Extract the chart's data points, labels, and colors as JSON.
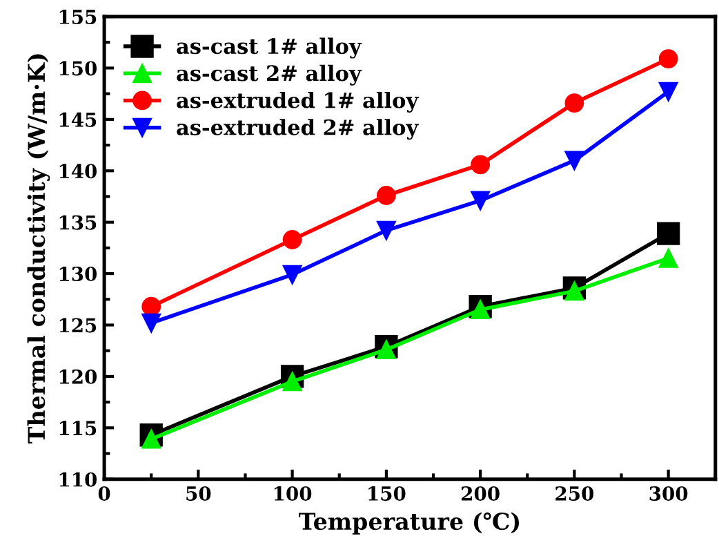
{
  "chart_data": {
    "type": "line",
    "xlabel": "Temperature (℃)",
    "ylabel": "Thermal conductivity (W/m·K)",
    "x": [
      25,
      100,
      150,
      200,
      250,
      300
    ],
    "series": [
      {
        "name": "as-cast 1# alloy",
        "color": "#000000",
        "marker": "square",
        "values": [
          114.3,
          120.0,
          122.9,
          126.8,
          128.6,
          133.9
        ]
      },
      {
        "name": "as-cast 2# alloy",
        "color": "#00ee00",
        "marker": "triangle",
        "values": [
          113.9,
          119.5,
          122.6,
          126.5,
          128.3,
          131.5
        ]
      },
      {
        "name": "as-extruded 1# alloy",
        "color": "#ff0000",
        "marker": "circle",
        "values": [
          126.8,
          133.3,
          137.6,
          140.6,
          146.6,
          150.9
        ]
      },
      {
        "name": "as-extruded 2# alloy",
        "color": "#0000ff",
        "marker": "triangle_down",
        "values": [
          125.2,
          129.9,
          134.2,
          137.1,
          141.0,
          147.7
        ]
      }
    ],
    "xlim": [
      0,
      325
    ],
    "xticks": [
      0,
      50,
      100,
      150,
      200,
      250,
      300
    ],
    "ylim": [
      110,
      155
    ],
    "yticks": [
      110,
      115,
      120,
      125,
      130,
      135,
      140,
      145,
      150,
      155
    ],
    "grid": false,
    "legend": "top left",
    "line_style": "solid"
  }
}
